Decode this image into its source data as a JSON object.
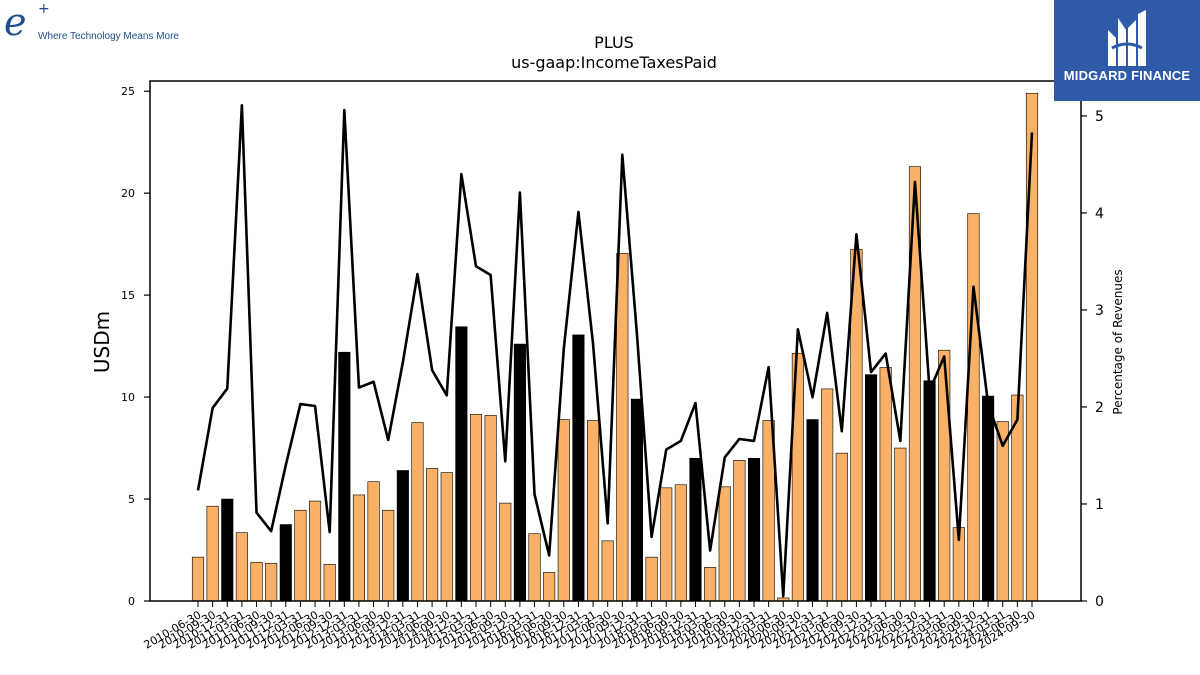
{
  "branding": {
    "left_logo_mark": "e",
    "left_logo_plus": "+",
    "left_logo_tagline": "Where Technology Means More",
    "right_logo_text": "MIDGARD FINANCE",
    "right_logo_icon": "midgard-monogram-icon",
    "right_logo_bg": "#2f5aa8"
  },
  "chart_data": {
    "type": "bar",
    "title": "PLUS",
    "subtitle": "us-gaap:IncomeTaxesPaid",
    "ylabel": "USDm",
    "y2label": "Percentage of Revenues",
    "ylim": [
      0,
      25.5
    ],
    "y2lim": [
      0,
      5.36
    ],
    "yticks": [
      "0",
      "5",
      "10",
      "15",
      "20",
      "25"
    ],
    "y2ticks": [
      "0",
      "1",
      "2",
      "3",
      "4",
      "5"
    ],
    "colors": {
      "fiscal_year_end_bar": "#000000",
      "quarter_bar": "#f8b166",
      "line": "#000000"
    },
    "categories": [
      "2010-06-30",
      "2010-09-30",
      "2010-12-31",
      "2011-03-31",
      "2011-06-30",
      "2011-09-30",
      "2011-12-31",
      "2012-03-31",
      "2012-06-30",
      "2012-09-30",
      "2012-12-31",
      "2013-03-31",
      "2013-06-30",
      "2013-09-30",
      "2013-12-31",
      "2014-03-31",
      "2014-06-30",
      "2014-09-30",
      "2014-12-31",
      "2015-03-31",
      "2015-06-30",
      "2015-09-30",
      "2015-12-31",
      "2016-03-31",
      "2016-06-30",
      "2016-09-30",
      "2016-12-31",
      "2017-03-31",
      "2017-06-30",
      "2017-09-30",
      "2017-12-31",
      "2018-03-31",
      "2018-06-30",
      "2018-09-30",
      "2018-12-31",
      "2019-03-31",
      "2019-06-30",
      "2019-09-30",
      "2019-12-31",
      "2020-03-31",
      "2020-06-30",
      "2020-09-30",
      "2020-12-31",
      "2021-03-31",
      "2021-06-30",
      "2021-09-30",
      "2021-12-31",
      "2022-03-31",
      "2022-06-30",
      "2022-09-30",
      "2022-12-31",
      "2023-03-31",
      "2023-06-30",
      "2023-09-30",
      "2023-12-31",
      "2024-03-31",
      "2024-06-30",
      "2024-09-30"
    ],
    "series": [
      {
        "kind": "bar",
        "values": [
          2.15,
          4.65,
          5.0,
          3.35,
          1.9,
          1.85,
          3.75,
          4.45,
          4.9,
          1.8,
          12.2,
          5.2,
          5.85,
          4.45,
          6.4,
          8.75,
          6.5,
          6.3,
          13.45,
          9.15,
          9.1,
          4.8,
          12.6,
          3.3,
          1.4,
          8.9,
          13.05,
          8.85,
          2.95,
          17.05,
          9.9,
          2.15,
          5.55,
          5.7,
          7.0,
          1.65,
          5.6,
          6.9,
          7.0,
          8.85,
          0.15,
          12.15,
          8.9,
          10.4,
          7.25,
          17.25,
          11.1,
          11.45,
          7.5,
          21.3,
          10.8,
          12.3,
          3.6,
          19.0,
          10.05,
          8.8,
          10.1,
          24.9
        ],
        "fiscal_year_end": [
          false,
          false,
          true,
          false,
          false,
          false,
          true,
          false,
          false,
          false,
          true,
          false,
          false,
          false,
          true,
          false,
          false,
          false,
          true,
          false,
          false,
          false,
          true,
          false,
          false,
          false,
          true,
          false,
          false,
          false,
          true,
          false,
          false,
          false,
          true,
          false,
          false,
          false,
          true,
          false,
          false,
          false,
          true,
          false,
          false,
          false,
          true,
          false,
          false,
          false,
          true,
          false,
          false,
          false,
          true,
          false,
          false,
          false
        ]
      },
      {
        "kind": "line",
        "axis": "right",
        "values": [
          1.14,
          1.99,
          2.19,
          5.11,
          0.91,
          0.72,
          1.4,
          2.03,
          2.01,
          0.71,
          5.06,
          2.2,
          2.26,
          1.66,
          2.46,
          3.37,
          2.38,
          2.12,
          4.4,
          3.45,
          3.36,
          1.44,
          4.21,
          1.1,
          0.47,
          2.6,
          4.01,
          2.65,
          0.8,
          4.6,
          2.75,
          0.66,
          1.56,
          1.65,
          2.04,
          0.52,
          1.48,
          1.67,
          1.65,
          2.41,
          0.05,
          2.8,
          2.1,
          2.97,
          1.75,
          3.78,
          2.36,
          2.55,
          1.65,
          4.32,
          2.17,
          2.52,
          0.63,
          3.24,
          2.03,
          1.6,
          1.87,
          4.83
        ]
      }
    ]
  }
}
